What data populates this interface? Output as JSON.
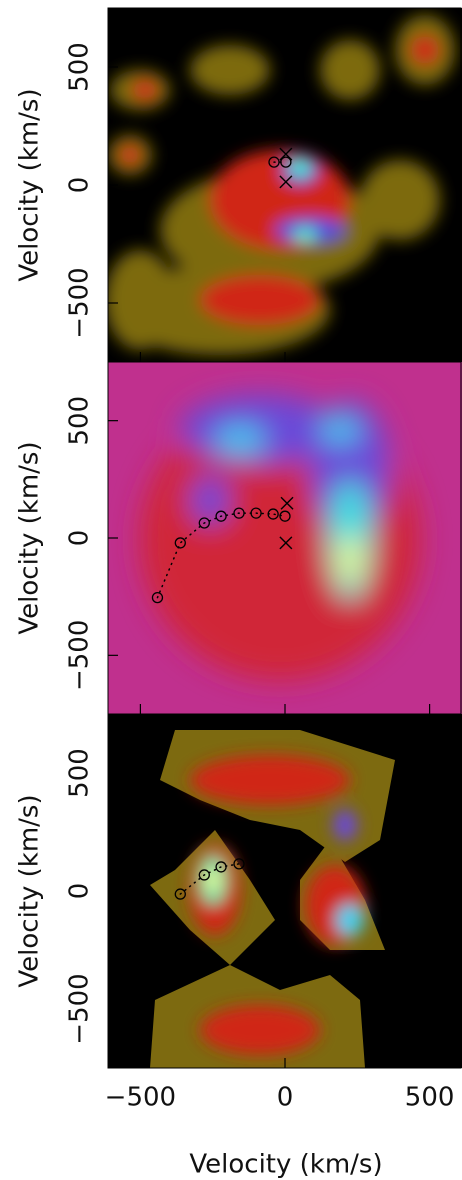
{
  "chart_data": {
    "x_axis": {
      "label": "Velocity (km/s)",
      "xlim": [
        -612,
        612
      ],
      "xticks": [
        {
          "value": -500,
          "label": "−500"
        },
        0,
        500
      ]
    },
    "panels": [
      {
        "type": "scatter",
        "ylabel": "Velocity (km/s)",
        "ylim": [
          -750,
          750
        ],
        "yticks": [
          {
            "value": -500,
            "label": "−500"
          },
          0,
          500
        ],
        "points": {
          "x": [
            -38,
            3
          ],
          "y": [
            97,
            97
          ]
        },
        "crosses": {
          "x": [
            3,
            3
          ],
          "y": [
            131,
            13
          ]
        }
      },
      {
        "type": "scatter",
        "ylabel": "Velocity (km/s)",
        "ylim": [
          -750,
          750
        ],
        "yticks": [
          {
            "value": -500,
            "label": "−500"
          },
          0,
          500
        ],
        "points": {
          "x": [
            -441,
            -362,
            -279,
            -221,
            -159,
            -100,
            -41,
            0
          ],
          "y": [
            -254,
            -21,
            64,
            93,
            106,
            106,
            102,
            93
          ]
        },
        "crosses": {
          "x": [
            7,
            3
          ],
          "y": [
            148,
            -21
          ]
        }
      },
      {
        "type": "scatter",
        "ylabel": "Velocity (km/s)",
        "ylim": [
          -750,
          750
        ],
        "yticks": [
          {
            "value": -500,
            "label": "−500"
          },
          0,
          500
        ],
        "points": {
          "x": [
            -362,
            -279,
            -221,
            -159
          ],
          "y": [
            -13,
            68,
            102,
            115
          ]
        },
        "crosses": {
          "x": [],
          "y": []
        }
      }
    ]
  }
}
